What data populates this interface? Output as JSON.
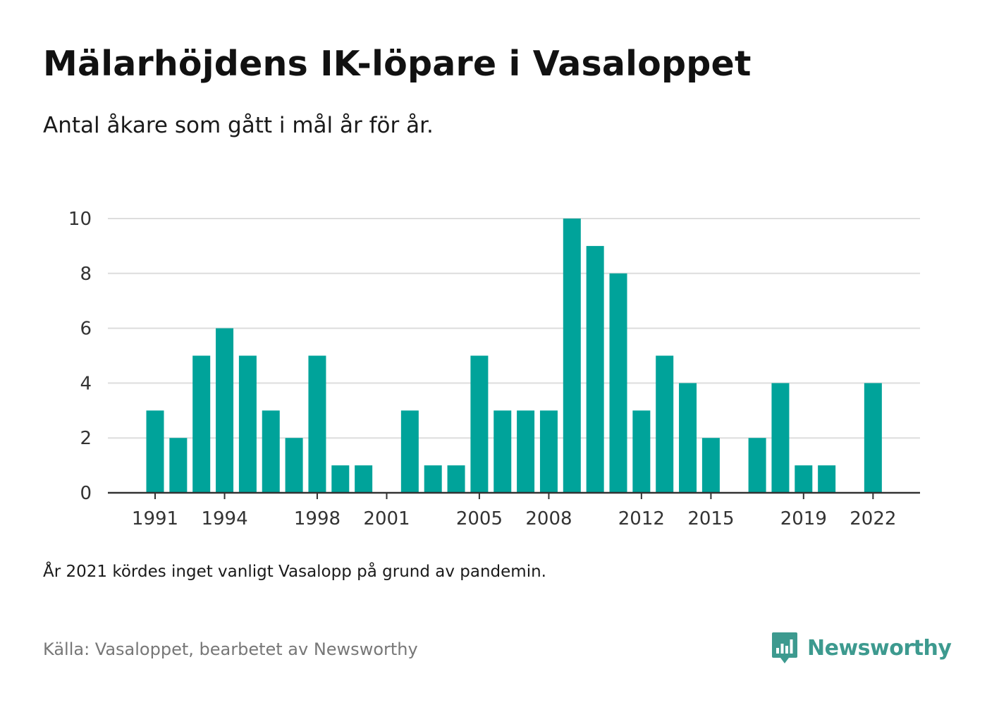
{
  "title": "Mälarhöjdens IK-löpare i Vasaloppet",
  "subtitle": "Antal åkare som gått i mål år för år.",
  "note": "År 2021 kördes inget vanligt Vasalopp på grund av pandemin.",
  "source": "Källa: Vasaloppet, bearbetet av Newsworthy",
  "brand": {
    "name": "Newsworthy",
    "icon": "newsworthy-logo-icon",
    "color": "#3d9a8f"
  },
  "colors": {
    "bar": "#00a39a",
    "grid": "#dddddd",
    "axis": "#333333"
  },
  "chart_data": {
    "type": "bar",
    "x": [
      1991,
      1992,
      1993,
      1994,
      1995,
      1996,
      1997,
      1998,
      1999,
      2000,
      2001,
      2002,
      2003,
      2004,
      2005,
      2006,
      2007,
      2008,
      2009,
      2010,
      2011,
      2012,
      2013,
      2014,
      2015,
      2016,
      2017,
      2018,
      2019,
      2020,
      2021,
      2022
    ],
    "values": [
      3,
      2,
      5,
      6,
      5,
      3,
      2,
      5,
      1,
      1,
      0,
      3,
      1,
      1,
      5,
      3,
      3,
      3,
      10,
      9,
      8,
      3,
      5,
      4,
      2,
      0,
      2,
      4,
      1,
      1,
      0,
      4
    ],
    "x_tick_labels": [
      "1991",
      "1994",
      "1998",
      "2001",
      "2005",
      "2008",
      "2012",
      "2015",
      "2019",
      "2022"
    ],
    "y_ticks": [
      0,
      2,
      4,
      6,
      8,
      10
    ],
    "ylim": [
      0,
      10
    ],
    "grid": true,
    "legend": "none",
    "xlabel": "",
    "ylabel": ""
  }
}
